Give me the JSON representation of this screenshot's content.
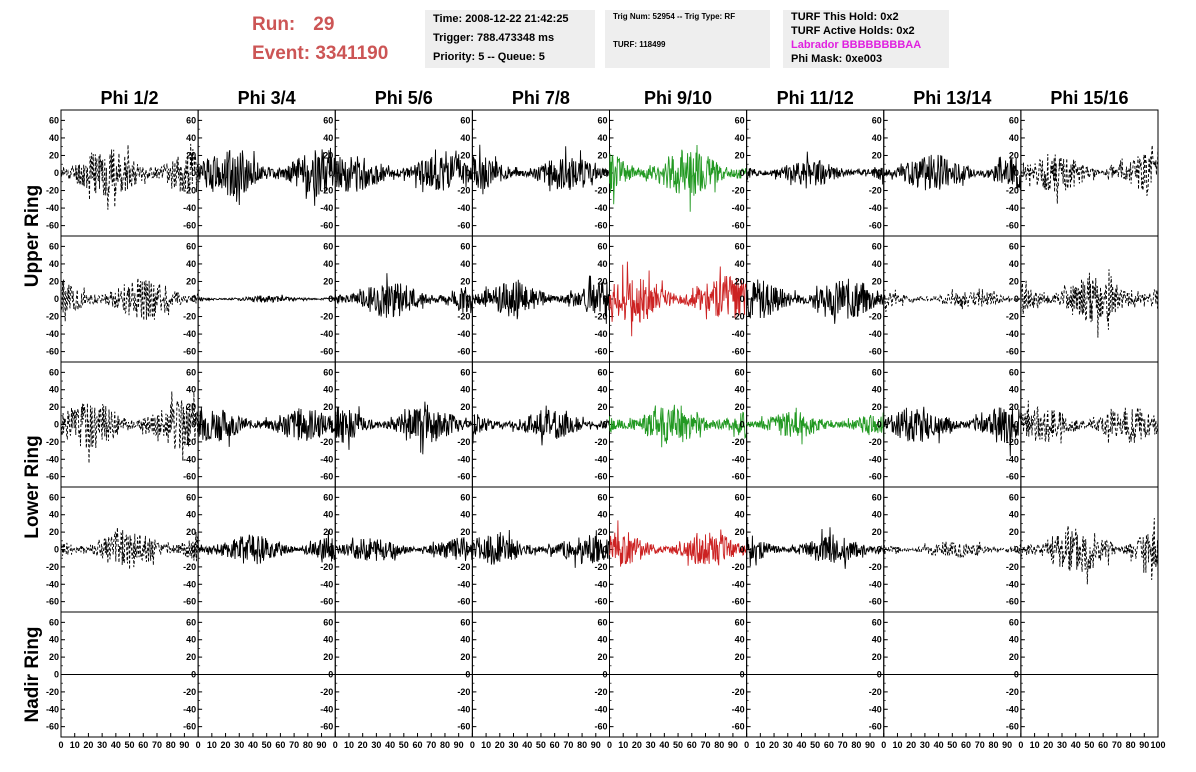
{
  "run_info": {
    "run_label": "Run:",
    "run_value": "29",
    "event_label": "Event:",
    "event_value": "3341190"
  },
  "time_box": {
    "time": "Time: 2008-12-22 21:42:25",
    "trigger": "Trigger: 788.473348 ms",
    "priority": "Priority: 5 -- Queue: 5"
  },
  "trig_box": {
    "trig": "Trig Num: 52954 -- Trig Type: RF",
    "turf": "TURF: 118499"
  },
  "turf_box": {
    "hold": "TURF This Hold: 0x2",
    "active": "TURF Active Holds: 0x2",
    "labrador": "Labrador BBBBBBBBAA",
    "phimask": "Phi Mask: 0xe003"
  },
  "colors": {
    "run_text": "#cc5555",
    "labrador_text": "#e020e0",
    "trace_normal": "#000000",
    "trace_green": "#229922",
    "trace_red": "#cc2222"
  },
  "chart_data": {
    "type": "line",
    "columns": [
      "Phi 1/2",
      "Phi 3/4",
      "Phi 5/6",
      "Phi 7/8",
      "Phi 9/10",
      "Phi 11/12",
      "Phi 13/14",
      "Phi 15/16"
    ],
    "rows": [
      "Upper Ring",
      "Upper Ring",
      "Lower Ring",
      "Lower Ring",
      "Nadir Ring"
    ],
    "row_labels": [
      "Upper Ring",
      "Lower Ring",
      "Nadir Ring"
    ],
    "xlim": [
      0,
      100
    ],
    "ylim": [
      -65,
      65
    ],
    "x_ticks": [
      "0",
      "10",
      "20",
      "30",
      "40",
      "50",
      "60",
      "70",
      "80",
      "90",
      "100"
    ],
    "y_ticks": [
      "60",
      "40",
      "20",
      "0",
      "-20",
      "-40",
      "-60"
    ],
    "grid": false,
    "panels": [
      [
        {
          "style": "dashed",
          "color": "black",
          "amplitude": 30,
          "seed": 11
        },
        {
          "style": "solid",
          "color": "black",
          "amplitude": 28,
          "seed": 12
        },
        {
          "style": "solid",
          "color": "black",
          "amplitude": 22,
          "seed": 13
        },
        {
          "style": "solid",
          "color": "black",
          "amplitude": 20,
          "seed": 14
        },
        {
          "style": "solid",
          "color": "green",
          "amplitude": 28,
          "seed": 15
        },
        {
          "style": "solid",
          "color": "black",
          "amplitude": 15,
          "seed": 16
        },
        {
          "style": "solid",
          "color": "black",
          "amplitude": 22,
          "seed": 17
        },
        {
          "style": "dashed",
          "color": "black",
          "amplitude": 22,
          "seed": 18
        }
      ],
      [
        {
          "style": "dashed",
          "color": "black",
          "amplitude": 25,
          "seed": 21
        },
        {
          "style": "solid",
          "color": "black",
          "amplitude": 4,
          "seed": 22
        },
        {
          "style": "solid",
          "color": "black",
          "amplitude": 22,
          "seed": 23
        },
        {
          "style": "solid",
          "color": "black",
          "amplitude": 20,
          "seed": 24
        },
        {
          "style": "solid",
          "color": "red",
          "amplitude": 28,
          "seed": 25
        },
        {
          "style": "solid",
          "color": "black",
          "amplitude": 24,
          "seed": 26
        },
        {
          "style": "dashed",
          "color": "black",
          "amplitude": 10,
          "seed": 27
        },
        {
          "style": "dashed",
          "color": "black",
          "amplitude": 28,
          "seed": 28
        }
      ],
      [
        {
          "style": "dashed",
          "color": "black",
          "amplitude": 28,
          "seed": 31
        },
        {
          "style": "solid",
          "color": "black",
          "amplitude": 20,
          "seed": 32
        },
        {
          "style": "solid",
          "color": "black",
          "amplitude": 22,
          "seed": 33
        },
        {
          "style": "solid",
          "color": "black",
          "amplitude": 18,
          "seed": 34
        },
        {
          "style": "solid",
          "color": "green",
          "amplitude": 24,
          "seed": 35
        },
        {
          "style": "solid",
          "color": "green",
          "amplitude": 16,
          "seed": 36
        },
        {
          "style": "solid",
          "color": "black",
          "amplitude": 22,
          "seed": 37
        },
        {
          "style": "dashed",
          "color": "black",
          "amplitude": 22,
          "seed": 38
        }
      ],
      [
        {
          "style": "dashed",
          "color": "black",
          "amplitude": 24,
          "seed": 41
        },
        {
          "style": "solid",
          "color": "black",
          "amplitude": 18,
          "seed": 42
        },
        {
          "style": "solid",
          "color": "black",
          "amplitude": 14,
          "seed": 43
        },
        {
          "style": "solid",
          "color": "black",
          "amplitude": 18,
          "seed": 44
        },
        {
          "style": "solid",
          "color": "red",
          "amplitude": 20,
          "seed": 45
        },
        {
          "style": "solid",
          "color": "black",
          "amplitude": 16,
          "seed": 46
        },
        {
          "style": "dashed",
          "color": "black",
          "amplitude": 10,
          "seed": 47
        },
        {
          "style": "dashed",
          "color": "black",
          "amplitude": 30,
          "seed": 48
        }
      ],
      [
        {
          "style": "flat",
          "color": "black",
          "amplitude": 0,
          "seed": 51
        },
        {
          "style": "none",
          "color": "black",
          "amplitude": 0,
          "seed": 52
        },
        {
          "style": "none",
          "color": "black",
          "amplitude": 0,
          "seed": 53
        },
        {
          "style": "none",
          "color": "black",
          "amplitude": 0,
          "seed": 54
        },
        {
          "style": "none",
          "color": "black",
          "amplitude": 0,
          "seed": 55
        },
        {
          "style": "none",
          "color": "black",
          "amplitude": 0,
          "seed": 56
        },
        {
          "style": "none",
          "color": "black",
          "amplitude": 0,
          "seed": 57
        },
        {
          "style": "none",
          "color": "black",
          "amplitude": 0,
          "seed": 58
        }
      ]
    ]
  }
}
